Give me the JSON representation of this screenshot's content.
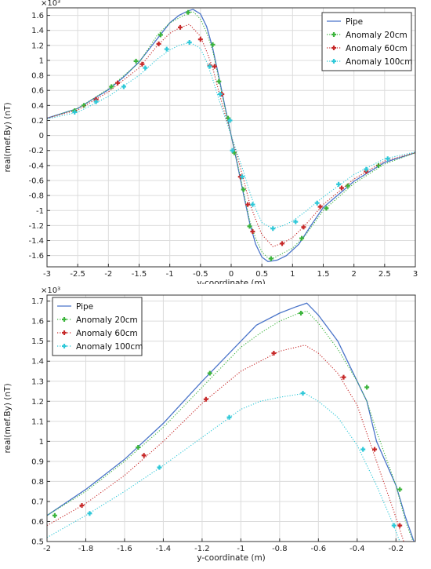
{
  "chart_data": [
    {
      "type": "line",
      "xlabel": "y-coordinate (m)",
      "ylabel": "real(mef.By) (nT)",
      "multiplier": "×10³",
      "xlim": [
        -3,
        3
      ],
      "ylim": [
        -1.75,
        1.7
      ],
      "xticks": [
        -3,
        -2.5,
        -2,
        -1.5,
        -1,
        -0.5,
        0,
        0.5,
        1,
        1.5,
        2,
        2.5,
        3
      ],
      "xtick_labels": [
        "-3",
        "-2.5",
        "-2",
        "-1.5",
        "-1",
        "-0.5",
        "0",
        "0.5",
        "1",
        "1.5",
        "2",
        "2.5",
        "3"
      ],
      "yticks": [
        -1.6,
        -1.4,
        -1.2,
        -1,
        -0.8,
        -0.6,
        -0.4,
        -0.2,
        0,
        0.2,
        0.4,
        0.6,
        0.8,
        1,
        1.2,
        1.4,
        1.6
      ],
      "ytick_labels": [
        "-1.6",
        "-1.4",
        "-1.2",
        "-1",
        "-0.8",
        "-0.6",
        "-0.4",
        "-0.2",
        "0",
        "0.2",
        "0.4",
        "0.6",
        "0.8",
        "1",
        "1.2",
        "1.4",
        "1.6"
      ],
      "grid": true,
      "legend_position": "top-right",
      "series": [
        {
          "name": "Pipe",
          "color": "#4a74c9",
          "style": "solid",
          "x": [
            -3,
            -2.5,
            -2,
            -1.75,
            -1.5,
            -1.25,
            -1,
            -0.85,
            -0.7,
            -0.62,
            -0.5,
            -0.4,
            -0.3,
            -0.2,
            -0.1,
            0,
            0.1,
            0.2,
            0.3,
            0.4,
            0.5,
            0.6,
            0.75,
            0.9,
            1.1,
            1.3,
            1.5,
            2,
            2.5,
            3
          ],
          "y": [
            0.23,
            0.36,
            0.61,
            0.78,
            0.98,
            1.24,
            1.5,
            1.6,
            1.66,
            1.68,
            1.62,
            1.45,
            1.16,
            0.78,
            0.38,
            0,
            -0.38,
            -0.78,
            -1.16,
            -1.45,
            -1.62,
            -1.68,
            -1.66,
            -1.6,
            -1.45,
            -1.2,
            -0.96,
            -0.61,
            -0.36,
            -0.23
          ]
        },
        {
          "name": "Anomaly 20cm",
          "color": "#3cb43c",
          "style": "dotted",
          "marker": "+",
          "x": [
            -3,
            -2.5,
            -2,
            -1.5,
            -1.2,
            -1,
            -0.7,
            -0.62,
            -0.5,
            -0.4,
            -0.3,
            -0.2,
            -0.1,
            0,
            0.1,
            0.2,
            0.3,
            0.4,
            0.5,
            0.62,
            0.7,
            1,
            1.2,
            1.5,
            2,
            2.5,
            3
          ],
          "y": [
            0.23,
            0.36,
            0.62,
            0.97,
            1.34,
            1.5,
            1.63,
            1.65,
            1.55,
            1.37,
            1.13,
            0.75,
            0.36,
            0,
            -0.36,
            -0.75,
            -1.13,
            -1.37,
            -1.55,
            -1.65,
            -1.63,
            -1.5,
            -1.34,
            -1.0,
            -0.64,
            -0.38,
            -0.23
          ],
          "marker_x": [
            -2.55,
            -2.4,
            -1.95,
            -1.55,
            -1.15,
            -0.7,
            -0.3,
            -0.2,
            -0.05,
            0.05,
            0.2,
            0.3,
            0.65,
            1.15,
            1.55,
            1.9,
            2.4
          ],
          "marker_y": [
            0.33,
            0.4,
            0.65,
            0.99,
            1.34,
            1.64,
            1.21,
            0.72,
            0.23,
            -0.23,
            -0.72,
            -1.21,
            -1.64,
            -1.37,
            -0.97,
            -0.67,
            -0.4
          ]
        },
        {
          "name": "Anomaly 60cm",
          "color": "#c62828",
          "style": "dotted",
          "marker": "+",
          "x": [
            -3,
            -2.5,
            -2,
            -1.5,
            -1.2,
            -1,
            -0.85,
            -0.68,
            -0.5,
            -0.4,
            -0.3,
            -0.2,
            -0.1,
            0,
            0.1,
            0.2,
            0.3,
            0.4,
            0.5,
            0.68,
            0.85,
            1,
            1.2,
            1.5,
            2,
            2.5,
            3
          ],
          "y": [
            0.23,
            0.34,
            0.58,
            0.9,
            1.2,
            1.36,
            1.43,
            1.48,
            1.32,
            1.12,
            0.9,
            0.58,
            0.28,
            0,
            -0.28,
            -0.58,
            -0.9,
            -1.12,
            -1.32,
            -1.48,
            -1.43,
            -1.36,
            -1.2,
            -0.92,
            -0.58,
            -0.34,
            -0.23
          ],
          "marker_x": [
            -2.2,
            -1.85,
            -1.45,
            -1.18,
            -0.83,
            -0.5,
            -0.35,
            -0.27,
            -0.15,
            0.15,
            0.27,
            0.35,
            0.83,
            1.18,
            1.45,
            1.8,
            2.2
          ],
          "marker_y": [
            0.48,
            0.7,
            0.95,
            1.22,
            1.44,
            1.28,
            0.93,
            0.92,
            0.55,
            -0.55,
            -0.92,
            -1.28,
            -1.44,
            -1.22,
            -0.95,
            -0.7,
            -0.48
          ]
        },
        {
          "name": "Anomaly 100cm",
          "color": "#2ec8d8",
          "style": "dotted",
          "marker": "+",
          "x": [
            -3,
            -2.5,
            -2,
            -1.5,
            -1.2,
            -1,
            -0.85,
            -0.67,
            -0.5,
            -0.4,
            -0.3,
            -0.2,
            -0.1,
            0,
            0.1,
            0.2,
            0.3,
            0.4,
            0.5,
            0.67,
            0.85,
            1,
            1.2,
            1.5,
            2,
            2.5,
            3
          ],
          "y": [
            0.22,
            0.31,
            0.52,
            0.8,
            1.02,
            1.14,
            1.2,
            1.24,
            1.16,
            0.98,
            0.75,
            0.48,
            0.24,
            0,
            -0.24,
            -0.48,
            -0.75,
            -0.98,
            -1.16,
            -1.24,
            -1.2,
            -1.14,
            -1.02,
            -0.82,
            -0.52,
            -0.31,
            -0.22
          ],
          "marker_x": [
            -2.55,
            -2.2,
            -1.75,
            -1.4,
            -1.05,
            -0.68,
            -0.35,
            -0.18,
            -0.02,
            0.02,
            0.18,
            0.35,
            0.68,
            1.05,
            1.4,
            1.75,
            2.2,
            2.55
          ],
          "marker_y": [
            0.31,
            0.45,
            0.65,
            0.9,
            1.15,
            1.24,
            0.92,
            0.55,
            0.2,
            -0.2,
            -0.55,
            -0.92,
            -1.24,
            -1.15,
            -0.9,
            -0.65,
            -0.45,
            -0.31
          ]
        }
      ]
    },
    {
      "type": "line",
      "xlabel": "y-coordinate (m)",
      "ylabel": "real(mef.By) (nT)",
      "multiplier": "×10³",
      "xlim": [
        -2,
        -0.1
      ],
      "ylim": [
        0.5,
        1.73
      ],
      "xticks": [
        -2,
        -1.8,
        -1.6,
        -1.4,
        -1.2,
        -1,
        -0.8,
        -0.6,
        -0.4,
        -0.2
      ],
      "xtick_labels": [
        "-2",
        "-1.8",
        "-1.6",
        "-1.4",
        "-1.2",
        "-1",
        "-0.8",
        "-0.6",
        "-0.4",
        "-0.2"
      ],
      "yticks": [
        0.5,
        0.6,
        0.7,
        0.8,
        0.9,
        1,
        1.1,
        1.2,
        1.3,
        1.4,
        1.5,
        1.6,
        1.7
      ],
      "ytick_labels": [
        "0.5",
        "0.6",
        "0.7",
        "0.8",
        "0.9",
        "1",
        "1.1",
        "1.2",
        "1.3",
        "1.4",
        "1.5",
        "1.6",
        "1.7"
      ],
      "grid": true,
      "legend_position": "top-left",
      "series": [
        {
          "name": "Pipe",
          "color": "#4a74c9",
          "style": "solid",
          "x": [
            -2,
            -1.8,
            -1.6,
            -1.4,
            -1.2,
            -1,
            -0.92,
            -0.8,
            -0.72,
            -0.66,
            -0.6,
            -0.5,
            -0.4,
            -0.35,
            -0.3,
            -0.2,
            -0.15,
            -0.1
          ],
          "y": [
            0.63,
            0.76,
            0.91,
            1.09,
            1.3,
            1.5,
            1.58,
            1.64,
            1.67,
            1.69,
            1.63,
            1.5,
            1.3,
            1.2,
            1.0,
            0.78,
            0.62,
            0.48
          ]
        },
        {
          "name": "Anomaly 20cm",
          "color": "#3cb43c",
          "style": "dotted",
          "marker": "+",
          "x": [
            -2,
            -1.8,
            -1.6,
            -1.4,
            -1.2,
            -1,
            -0.9,
            -0.8,
            -0.7,
            -0.66,
            -0.6,
            -0.5,
            -0.4,
            -0.35,
            -0.3,
            -0.2,
            -0.15,
            -0.1
          ],
          "y": [
            0.63,
            0.75,
            0.9,
            1.07,
            1.27,
            1.47,
            1.54,
            1.6,
            1.64,
            1.65,
            1.59,
            1.46,
            1.3,
            1.2,
            1.05,
            0.78,
            0.6,
            0.47
          ],
          "marker_x": [
            -1.96,
            -1.53,
            -1.16,
            -0.69,
            -0.35,
            -0.18
          ],
          "marker_y": [
            0.63,
            0.97,
            1.34,
            1.64,
            1.27,
            0.76
          ]
        },
        {
          "name": "Anomaly 60cm",
          "color": "#c62828",
          "style": "dotted",
          "marker": "+",
          "x": [
            -2,
            -1.8,
            -1.6,
            -1.4,
            -1.2,
            -1,
            -0.9,
            -0.8,
            -0.67,
            -0.6,
            -0.5,
            -0.4,
            -0.3,
            -0.2,
            -0.15
          ],
          "y": [
            0.58,
            0.69,
            0.83,
            1.0,
            1.19,
            1.35,
            1.4,
            1.45,
            1.48,
            1.44,
            1.34,
            1.18,
            0.9,
            0.62,
            0.47
          ],
          "marker_x": [
            -1.82,
            -1.5,
            -1.18,
            -0.83,
            -0.47,
            -0.31,
            -0.18
          ],
          "marker_y": [
            0.68,
            0.93,
            1.21,
            1.44,
            1.32,
            0.96,
            0.58
          ]
        },
        {
          "name": "Anomaly 100cm",
          "color": "#2ec8d8",
          "style": "dotted",
          "marker": "+",
          "x": [
            -2,
            -1.8,
            -1.6,
            -1.4,
            -1.2,
            -1,
            -0.9,
            -0.8,
            -0.67,
            -0.6,
            -0.5,
            -0.4,
            -0.3,
            -0.22,
            -0.18
          ],
          "y": [
            0.52,
            0.63,
            0.75,
            0.88,
            1.02,
            1.16,
            1.2,
            1.22,
            1.24,
            1.2,
            1.12,
            0.98,
            0.78,
            0.6,
            0.5
          ],
          "marker_x": [
            -1.78,
            -1.42,
            -1.06,
            -0.68,
            -0.37,
            -0.21
          ],
          "marker_y": [
            0.64,
            0.87,
            1.12,
            1.24,
            0.96,
            0.58
          ]
        }
      ]
    }
  ]
}
